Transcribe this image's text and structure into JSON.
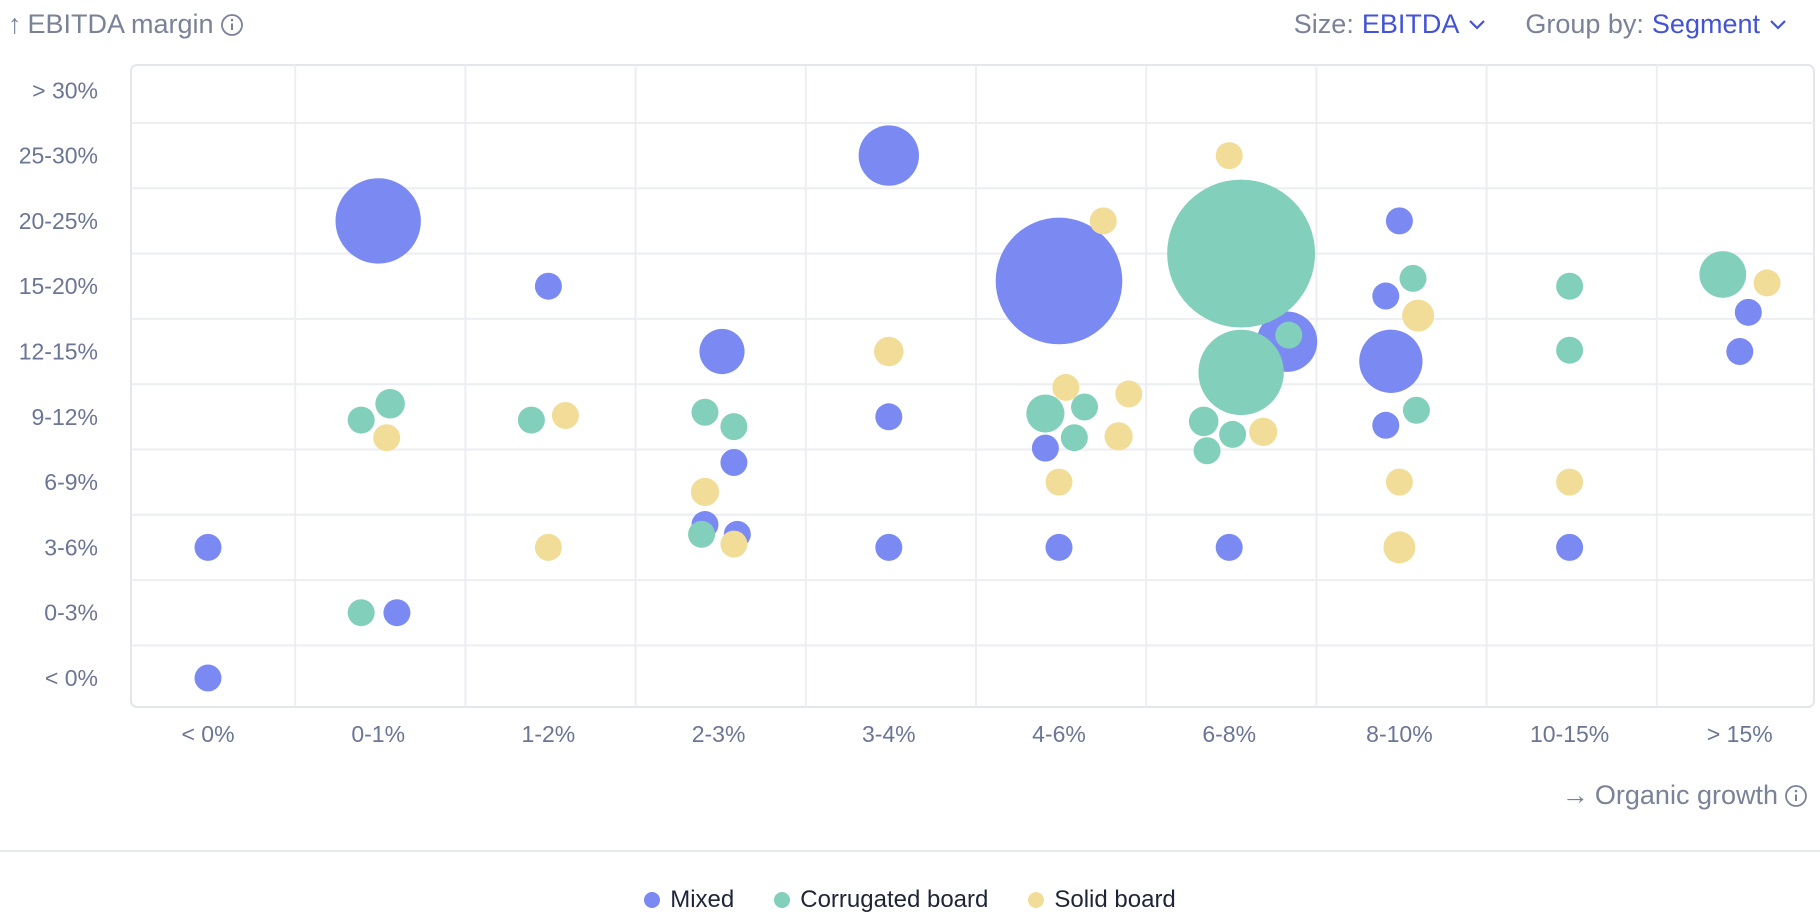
{
  "header": {
    "y_axis_title": "EBITDA margin",
    "size_label": "Size:",
    "size_value": "EBITDA",
    "group_label": "Group by:",
    "group_value": "Segment"
  },
  "footer": {
    "x_axis_title": "Organic growth"
  },
  "colors": {
    "Mixed": "#7b8af2",
    "Corrugated board": "#82cfbb",
    "Solid board": "#f2dd98"
  },
  "legend": [
    {
      "label": "Mixed"
    },
    {
      "label": "Corrugated board"
    },
    {
      "label": "Solid board"
    }
  ],
  "chart_data": {
    "type": "scatter",
    "title": "",
    "xlabel": "Organic growth",
    "ylabel": "EBITDA margin",
    "x_categories": [
      "< 0%",
      "0-1%",
      "1-2%",
      "2-3%",
      "3-4%",
      "4-6%",
      "6-8%",
      "8-10%",
      "10-15%",
      "> 15%"
    ],
    "y_categories": [
      "< 0%",
      "0-3%",
      "3-6%",
      "6-9%",
      "9-12%",
      "12-15%",
      "15-20%",
      "20-25%",
      "25-30%",
      "> 30%"
    ],
    "size_by": "EBITDA",
    "series": [
      {
        "name": "Mixed",
        "points": [
          {
            "x": 0.0,
            "y": 0.0,
            "size": 1
          },
          {
            "x": 0.0,
            "y": 2.0,
            "size": 1
          },
          {
            "x": 1.11,
            "y": 1.0,
            "size": 1
          },
          {
            "x": 1.0,
            "y": 7.0,
            "size": 10
          },
          {
            "x": 2.0,
            "y": 6.0,
            "size": 1
          },
          {
            "x": 3.02,
            "y": 5.0,
            "size": 2.8
          },
          {
            "x": 3.09,
            "y": 3.3,
            "size": 1
          },
          {
            "x": 2.92,
            "y": 2.35,
            "size": 1
          },
          {
            "x": 3.11,
            "y": 2.2,
            "size": 1
          },
          {
            "x": 4.0,
            "y": 8.0,
            "size": 5
          },
          {
            "x": 4.0,
            "y": 4.0,
            "size": 1
          },
          {
            "x": 4.0,
            "y": 2.0,
            "size": 1
          },
          {
            "x": 5.0,
            "y": 6.08,
            "size": 22
          },
          {
            "x": 4.92,
            "y": 3.52,
            "size": 1
          },
          {
            "x": 5.0,
            "y": 2.0,
            "size": 1
          },
          {
            "x": 6.34,
            "y": 5.15,
            "size": 5
          },
          {
            "x": 6.0,
            "y": 2.0,
            "size": 1
          },
          {
            "x": 7.0,
            "y": 7.0,
            "size": 1
          },
          {
            "x": 6.92,
            "y": 5.85,
            "size": 1
          },
          {
            "x": 6.95,
            "y": 4.85,
            "size": 5.5
          },
          {
            "x": 6.92,
            "y": 3.87,
            "size": 1
          },
          {
            "x": 8.0,
            "y": 2.0,
            "size": 1
          },
          {
            "x": 9.05,
            "y": 5.6,
            "size": 1
          },
          {
            "x": 9.0,
            "y": 5.0,
            "size": 1
          }
        ]
      },
      {
        "name": "Corrugated board",
        "points": [
          {
            "x": 0.9,
            "y": 1.0,
            "size": 1
          },
          {
            "x": 0.9,
            "y": 3.95,
            "size": 1
          },
          {
            "x": 1.07,
            "y": 4.2,
            "size": 1.2
          },
          {
            "x": 1.9,
            "y": 3.95,
            "size": 1
          },
          {
            "x": 2.9,
            "y": 2.2,
            "size": 1
          },
          {
            "x": 2.92,
            "y": 4.07,
            "size": 1
          },
          {
            "x": 3.09,
            "y": 3.85,
            "size": 1
          },
          {
            "x": 4.92,
            "y": 4.05,
            "size": 2
          },
          {
            "x": 5.15,
            "y": 4.15,
            "size": 1
          },
          {
            "x": 5.09,
            "y": 3.68,
            "size": 1
          },
          {
            "x": 6.07,
            "y": 6.5,
            "size": 30
          },
          {
            "x": 6.07,
            "y": 4.68,
            "size": 10
          },
          {
            "x": 6.35,
            "y": 5.25,
            "size": 1
          },
          {
            "x": 5.85,
            "y": 3.93,
            "size": 1.2
          },
          {
            "x": 6.02,
            "y": 3.73,
            "size": 1
          },
          {
            "x": 5.87,
            "y": 3.48,
            "size": 1
          },
          {
            "x": 7.08,
            "y": 6.12,
            "size": 1
          },
          {
            "x": 7.1,
            "y": 4.1,
            "size": 1
          },
          {
            "x": 8.0,
            "y": 6.0,
            "size": 1
          },
          {
            "x": 8.0,
            "y": 5.02,
            "size": 1
          },
          {
            "x": 8.9,
            "y": 6.18,
            "size": 3
          }
        ]
      },
      {
        "name": "Solid board",
        "points": [
          {
            "x": 1.05,
            "y": 3.68,
            "size": 1
          },
          {
            "x": 2.1,
            "y": 4.02,
            "size": 1
          },
          {
            "x": 2.0,
            "y": 2.0,
            "size": 1
          },
          {
            "x": 2.92,
            "y": 2.85,
            "size": 1.1
          },
          {
            "x": 3.09,
            "y": 2.05,
            "size": 1
          },
          {
            "x": 4.0,
            "y": 5.0,
            "size": 1.2
          },
          {
            "x": 5.04,
            "y": 4.45,
            "size": 1
          },
          {
            "x": 5.0,
            "y": 3.0,
            "size": 1
          },
          {
            "x": 5.26,
            "y": 7.0,
            "size": 1
          },
          {
            "x": 6.0,
            "y": 8.0,
            "size": 1
          },
          {
            "x": 5.41,
            "y": 4.35,
            "size": 1
          },
          {
            "x": 5.35,
            "y": 3.7,
            "size": 1.1
          },
          {
            "x": 6.2,
            "y": 3.77,
            "size": 1.1
          },
          {
            "x": 7.11,
            "y": 5.55,
            "size": 1.4
          },
          {
            "x": 7.0,
            "y": 3.0,
            "size": 1
          },
          {
            "x": 7.0,
            "y": 2.0,
            "size": 1.4
          },
          {
            "x": 8.0,
            "y": 3.0,
            "size": 1
          },
          {
            "x": 9.16,
            "y": 6.05,
            "size": 1
          }
        ]
      }
    ]
  }
}
